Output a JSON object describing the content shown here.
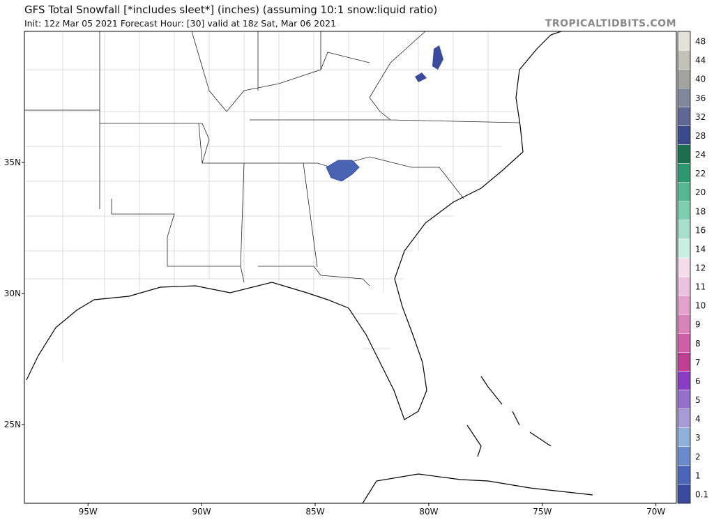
{
  "header": {
    "title": "GFS Total Snowfall [*includes sleet*] (inches) (assuming 10:1 snow:liquid ratio)",
    "subtitle": "Init: 12z Mar 05 2021   Forecast Hour: [30]   valid at 18z Sat, Mar 06 2021",
    "watermark": "TROPICALTIDBITS.COM"
  },
  "map": {
    "xlim": [
      -97.8,
      -69.1
    ],
    "ylim": [
      22,
      40
    ],
    "xticks": [
      {
        "value": -95,
        "label": "95W"
      },
      {
        "value": -90,
        "label": "90W"
      },
      {
        "value": -85,
        "label": "85W"
      },
      {
        "value": -80,
        "label": "80W"
      },
      {
        "value": -75,
        "label": "75W"
      },
      {
        "value": -70,
        "label": "70W"
      }
    ],
    "yticks": [
      {
        "value": 35,
        "label": "35N"
      },
      {
        "value": 30,
        "label": "30N"
      },
      {
        "value": 25,
        "label": "25N"
      }
    ]
  },
  "colorbar": {
    "levels": [
      {
        "value": 0.1,
        "color": "#3b4a9c"
      },
      {
        "value": 1,
        "color": "#4b66b6"
      },
      {
        "value": 2,
        "color": "#6a8bc9"
      },
      {
        "value": 3,
        "color": "#8fb0da"
      },
      {
        "value": 4,
        "color": "#a79ad6"
      },
      {
        "value": 5,
        "color": "#9470cc"
      },
      {
        "value": 6,
        "color": "#8a3cc2"
      },
      {
        "value": 7,
        "color": "#bf3f94"
      },
      {
        "value": 8,
        "color": "#cf5ea9"
      },
      {
        "value": 9,
        "color": "#d981ba"
      },
      {
        "value": 10,
        "color": "#e2a2cd"
      },
      {
        "value": 11,
        "color": "#eac2de"
      },
      {
        "value": 12,
        "color": "#f3dcec"
      },
      {
        "value": 14,
        "color": "#cbeee2"
      },
      {
        "value": 16,
        "color": "#a6e0cc"
      },
      {
        "value": 18,
        "color": "#7ecfb1"
      },
      {
        "value": 20,
        "color": "#56b892"
      },
      {
        "value": 22,
        "color": "#2f9672"
      },
      {
        "value": 24,
        "color": "#1b6e50"
      },
      {
        "value": 28,
        "color": "#3b4a8a"
      },
      {
        "value": 32,
        "color": "#5f6892"
      },
      {
        "value": 36,
        "color": "#808799"
      },
      {
        "value": 40,
        "color": "#a2a3a0"
      },
      {
        "value": 44,
        "color": "#c2c2b8"
      },
      {
        "value": 48,
        "color": "#e2e2d8"
      }
    ]
  }
}
